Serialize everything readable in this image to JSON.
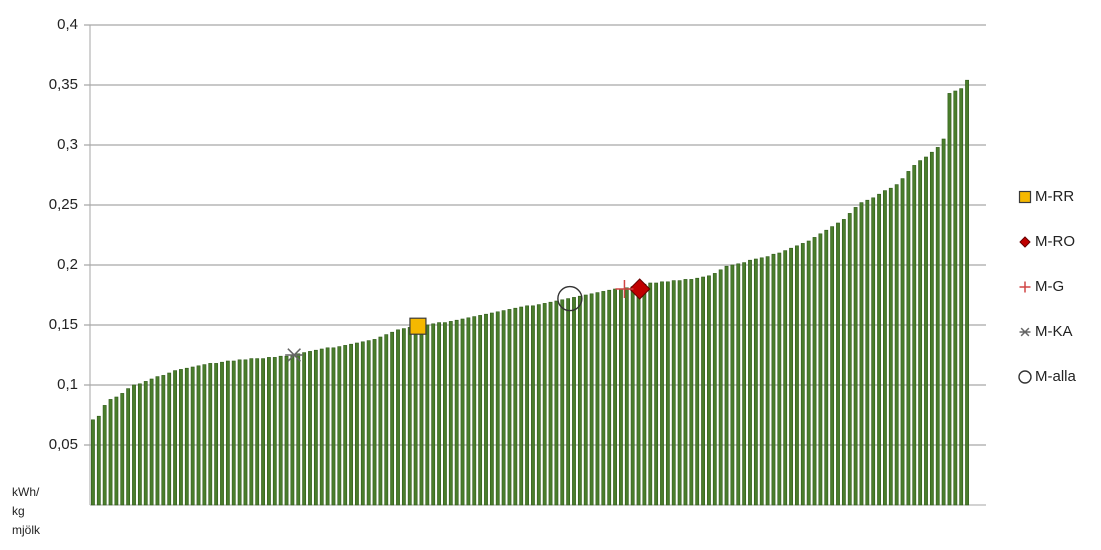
{
  "chart_data": {
    "type": "bar",
    "ylabel": [
      "kWh/",
      "kg",
      "mjölk"
    ],
    "color": "#4a7d2c",
    "grid": true,
    "ylim": [
      0,
      0.4
    ],
    "yticks": [
      {
        "value": 0.05,
        "label": "0,05"
      },
      {
        "value": 0.1,
        "label": "0,1"
      },
      {
        "value": 0.15,
        "label": "0,15"
      },
      {
        "value": 0.2,
        "label": "0,2"
      },
      {
        "value": 0.25,
        "label": "0,25"
      },
      {
        "value": 0.3,
        "label": "0,3"
      },
      {
        "value": 0.35,
        "label": "0,35"
      },
      {
        "value": 0.4,
        "label": "0,4"
      }
    ],
    "values": [
      0.071,
      0.074,
      0.083,
      0.088,
      0.09,
      0.093,
      0.097,
      0.1,
      0.101,
      0.103,
      0.105,
      0.107,
      0.108,
      0.11,
      0.112,
      0.113,
      0.114,
      0.115,
      0.116,
      0.117,
      0.118,
      0.118,
      0.119,
      0.12,
      0.12,
      0.121,
      0.121,
      0.122,
      0.122,
      0.122,
      0.123,
      0.123,
      0.124,
      0.124,
      0.125,
      0.126,
      0.127,
      0.128,
      0.129,
      0.13,
      0.131,
      0.131,
      0.132,
      0.133,
      0.134,
      0.135,
      0.136,
      0.137,
      0.138,
      0.14,
      0.142,
      0.144,
      0.146,
      0.147,
      0.148,
      0.149,
      0.15,
      0.15,
      0.151,
      0.152,
      0.152,
      0.153,
      0.154,
      0.155,
      0.156,
      0.157,
      0.158,
      0.159,
      0.16,
      0.161,
      0.162,
      0.163,
      0.164,
      0.165,
      0.166,
      0.166,
      0.167,
      0.168,
      0.169,
      0.17,
      0.171,
      0.172,
      0.173,
      0.174,
      0.175,
      0.176,
      0.177,
      0.178,
      0.179,
      0.18,
      0.18,
      0.181,
      0.182,
      0.183,
      0.184,
      0.185,
      0.185,
      0.186,
      0.186,
      0.187,
      0.187,
      0.188,
      0.188,
      0.189,
      0.19,
      0.191,
      0.193,
      0.196,
      0.199,
      0.2,
      0.201,
      0.202,
      0.204,
      0.205,
      0.206,
      0.207,
      0.209,
      0.21,
      0.212,
      0.214,
      0.216,
      0.218,
      0.22,
      0.223,
      0.226,
      0.229,
      0.232,
      0.235,
      0.238,
      0.243,
      0.248,
      0.252,
      0.254,
      0.256,
      0.259,
      0.262,
      0.264,
      0.267,
      0.272,
      0.278,
      0.283,
      0.287,
      0.29,
      0.294,
      0.298,
      0.305,
      0.343,
      0.345,
      0.347,
      0.354
    ],
    "markers": [
      {
        "name": "M-RR",
        "marker": "square",
        "color": "#f5b800",
        "x": 55.4,
        "value": 0.149
      },
      {
        "name": "M-RO",
        "marker": "diamond",
        "color": "#c00000",
        "x": 93.2,
        "value": 0.18
      },
      {
        "name": "M-G",
        "marker": "plus",
        "color": "#d04545",
        "x": 90.6,
        "value": 0.18
      },
      {
        "name": "M-KA",
        "marker": "star",
        "color": "#666666",
        "x": 34.3,
        "value": 0.125
      },
      {
        "name": "M-alla",
        "marker": "circle",
        "color": "#333333",
        "x": 81.3,
        "value": 0.172
      }
    ]
  }
}
